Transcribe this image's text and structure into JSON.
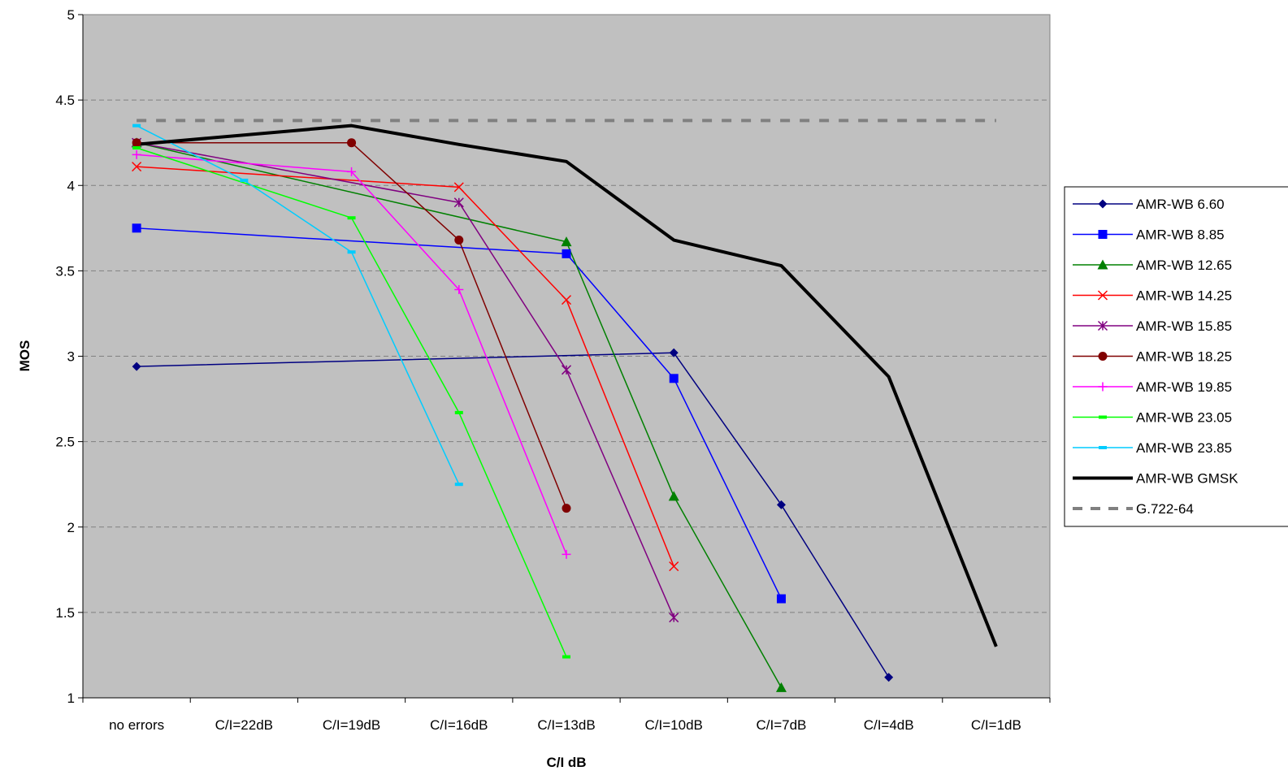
{
  "chart_data": {
    "type": "line",
    "title": "",
    "xlabel": "C/I dB",
    "ylabel": "MOS",
    "ylim": [
      1,
      5
    ],
    "yticks": [
      "1",
      "1.5",
      "2",
      "2.5",
      "3",
      "3.5",
      "4",
      "4.5",
      "5"
    ],
    "grid": "horizontal dashed",
    "legend_position": "right",
    "categories": [
      "no errors",
      "C/I=22dB",
      "C/I=19dB",
      "C/I=16dB",
      "C/I=13dB",
      "C/I=10dB",
      "C/I=7dB",
      "C/I=4dB",
      "C/I=1dB"
    ],
    "plot_background": "#c0c0c0",
    "series": [
      {
        "name": "AMR-WB 6.60",
        "color": "#000080",
        "marker": "diamond",
        "values": [
          2.94,
          null,
          null,
          null,
          null,
          3.02,
          2.13,
          1.12,
          null
        ]
      },
      {
        "name": "AMR-WB 8.85",
        "color": "#0000ff",
        "marker": "square",
        "values": [
          3.75,
          null,
          null,
          null,
          3.6,
          2.87,
          1.58,
          null,
          null
        ]
      },
      {
        "name": "AMR-WB 12.65",
        "color": "#008000",
        "marker": "triangle",
        "values": [
          4.25,
          null,
          null,
          null,
          3.67,
          2.18,
          1.06,
          null,
          null
        ]
      },
      {
        "name": "AMR-WB 14.25",
        "color": "#ff0000",
        "marker": "x",
        "values": [
          4.11,
          null,
          null,
          3.99,
          3.33,
          1.77,
          null,
          null,
          null
        ]
      },
      {
        "name": "AMR-WB 15.85",
        "color": "#800080",
        "marker": "star",
        "values": [
          4.25,
          null,
          null,
          3.9,
          2.92,
          1.47,
          null,
          null,
          null
        ]
      },
      {
        "name": "AMR-WB 18.25",
        "color": "#800000",
        "marker": "circle",
        "values": [
          4.25,
          null,
          4.25,
          3.68,
          2.11,
          null,
          null,
          null,
          null
        ]
      },
      {
        "name": "AMR-WB 19.85",
        "color": "#ff00ff",
        "marker": "plus",
        "values": [
          4.18,
          null,
          4.08,
          3.39,
          1.84,
          null,
          null,
          null,
          null
        ]
      },
      {
        "name": "AMR-WB 23.05",
        "color": "#00ff00",
        "marker": "dash",
        "values": [
          4.22,
          null,
          3.81,
          2.67,
          1.24,
          null,
          null,
          null,
          null
        ]
      },
      {
        "name": "AMR-WB 23.85",
        "color": "#00ccff",
        "marker": "dash",
        "values": [
          4.35,
          4.03,
          3.61,
          2.25,
          null,
          null,
          null,
          null,
          null
        ]
      },
      {
        "name": "AMR-WB GMSK",
        "color": "#000000",
        "marker": "none",
        "values": [
          4.24,
          null,
          4.35,
          4.24,
          4.14,
          3.68,
          3.53,
          2.88,
          1.3
        ]
      },
      {
        "name": "G.722-64",
        "color": "#808080",
        "marker": "none",
        "style": "dashed",
        "values": [
          4.38,
          4.38,
          4.38,
          4.38,
          4.38,
          4.38,
          4.38,
          4.38,
          4.38
        ]
      }
    ]
  }
}
